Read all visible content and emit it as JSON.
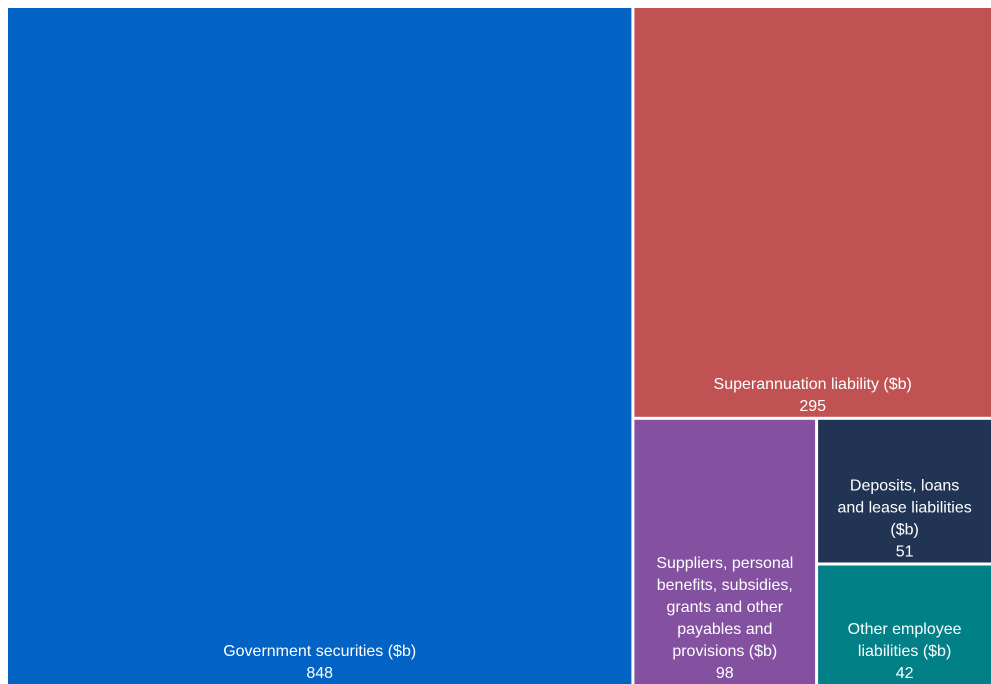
{
  "chart_data": {
    "type": "treemap",
    "title": "",
    "unit_note": "",
    "items": [
      {
        "label": "Government securities ($b)",
        "label_lines": [
          "Government securities ($b)"
        ],
        "value": 848,
        "value_text": "848",
        "color": "#0263c5"
      },
      {
        "label": "Superannuation liability ($b)",
        "label_lines": [
          "Superannuation liability ($b)"
        ],
        "value": 295,
        "value_text": "295",
        "color": "#c05253"
      },
      {
        "label": "Suppliers, personal benefits, subsidies, grants and other payables and provisions ($b)",
        "label_lines": [
          "Suppliers, personal",
          "benefits, subsidies,",
          "grants and other",
          "payables and",
          "provisions ($b)"
        ],
        "value": 98,
        "value_text": "98",
        "color": "#8450a0"
      },
      {
        "label": "Deposits, loans and lease liabilities ($b)",
        "label_lines": [
          "Deposits, loans",
          "and lease liabilities",
          "($b)"
        ],
        "value": 51,
        "value_text": "51",
        "color": "#223454"
      },
      {
        "label": "Other employee liabilities ($b)",
        "label_lines": [
          "Other employee",
          "liabilities ($b)"
        ],
        "value": 42,
        "value_text": "42",
        "color": "#018088"
      }
    ]
  }
}
